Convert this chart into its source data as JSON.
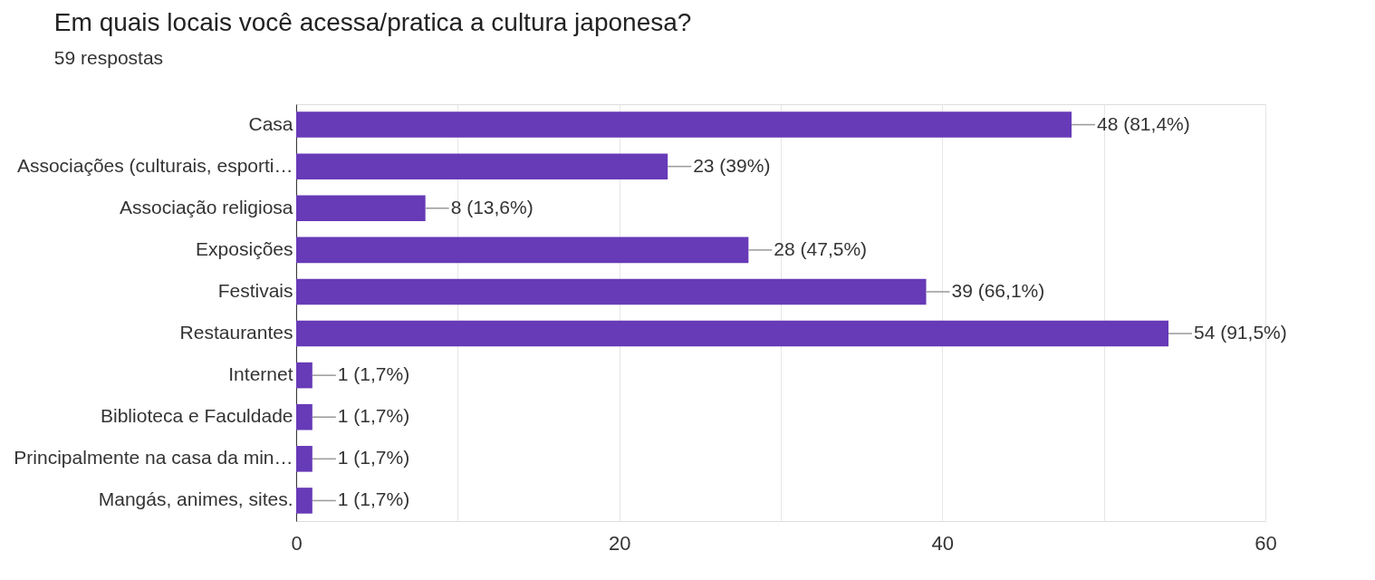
{
  "chart_data": {
    "type": "bar",
    "orientation": "horizontal",
    "title": "Em quais locais você acessa/pratica a cultura japonesa?",
    "subtitle": "59 respostas",
    "categories": [
      "Casa",
      "Associações (culturais, esporti…",
      "Associação religiosa",
      "Exposições",
      "Festivais",
      "Restaurantes",
      "Internet",
      "Biblioteca e Faculdade",
      "Principalmente na casa da min…",
      "Mangás, animes, sites."
    ],
    "values": [
      48,
      23,
      8,
      28,
      39,
      54,
      1,
      1,
      1,
      1
    ],
    "value_labels": [
      "48 (81,4%)",
      "23 (39%)",
      "8 (13,6%)",
      "28 (47,5%)",
      "39 (66,1%)",
      "54 (91,5%)",
      "1 (1,7%)",
      "1 (1,7%)",
      "1 (1,7%)",
      "1 (1,7%)"
    ],
    "color": "#673ab7",
    "xlim": [
      0,
      60
    ],
    "xticks": [
      0,
      {
        "value": 10,
        "label": null
      },
      20,
      {
        "value": 30,
        "label": null
      },
      40,
      {
        "value": 50,
        "label": null
      },
      60
    ],
    "grid": "x"
  }
}
